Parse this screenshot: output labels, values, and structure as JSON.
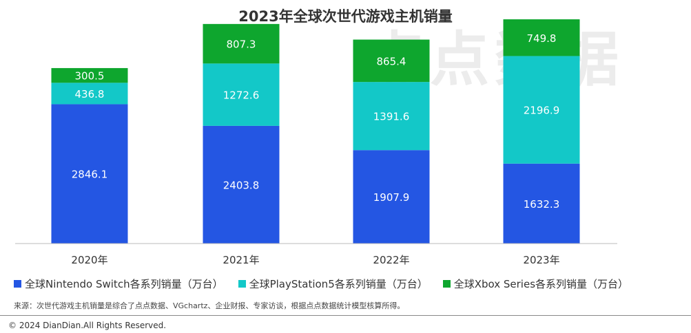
{
  "watermark": "点点数据",
  "chart_data": {
    "type": "bar",
    "stacked": true,
    "title": "2023年全球次世代游戏主机销量",
    "categories": [
      "2020年",
      "2021年",
      "2022年",
      "2023年"
    ],
    "series": [
      {
        "name": "全球Nintendo Switch各系列销量（万台）",
        "color": "#2456e3",
        "values": [
          2846.1,
          2403.8,
          1907.9,
          1632.3
        ]
      },
      {
        "name": "全球PlayStation5各系列销量（万台）",
        "color": "#13c8c8",
        "values": [
          436.8,
          1272.6,
          1391.6,
          2196.9
        ]
      },
      {
        "name": "全球Xbox Series各系列销量（万台）",
        "color": "#0ea62e",
        "values": [
          300.5,
          807.3,
          865.4,
          749.8
        ]
      }
    ],
    "ylim": [
      0,
      4580
    ],
    "grid": false,
    "legend": "bottom-left"
  },
  "source": "来源：次世代游戏主机销量是综合了点点数据、VGchartz、企业财报、专家访谈，根据点点数据统计模型核算所得。",
  "copyright": "© 2024 DianDian.All Rights Reserved."
}
